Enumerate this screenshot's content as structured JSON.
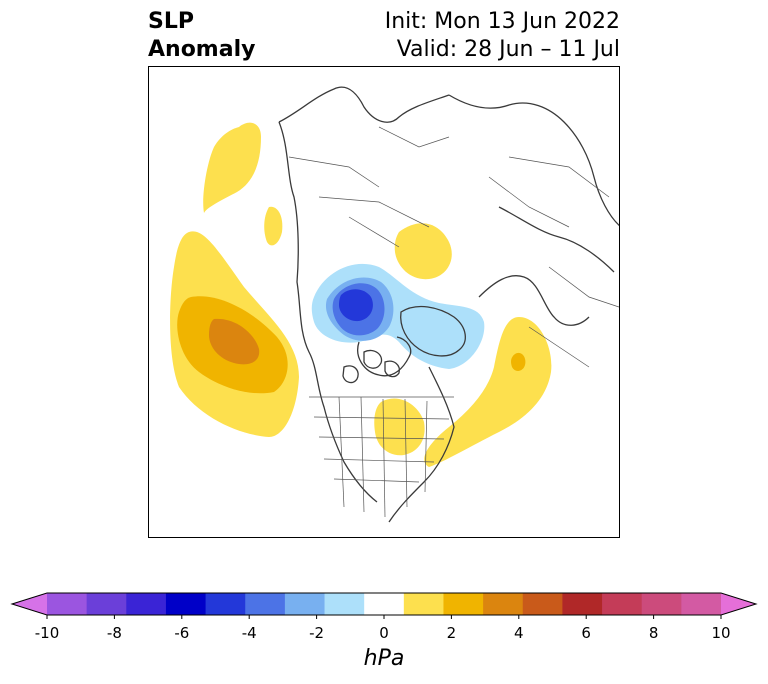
{
  "title": {
    "variable_line1": "SLP",
    "variable_line2": "Anomaly",
    "init": "Init: Mon 13 Jun 2022",
    "valid": "Valid: 28 Jun – 11 Jul"
  },
  "map": {
    "projection": "north-polar-stereographic",
    "region": "North America / Arctic / North Pacific / North Atlantic",
    "features": [
      {
        "name": "positive-anomaly-north-pacific",
        "value_range": "2 to 4",
        "peak_color": "#db850f"
      },
      {
        "name": "positive-anomaly-alaska-gulf",
        "value_range": "1 to 2"
      },
      {
        "name": "positive-anomaly-bering",
        "value_range": "1 to 2"
      },
      {
        "name": "negative-anomaly-arctic",
        "value_range": "-5 to -1",
        "peak_color": "#2536d6"
      },
      {
        "name": "positive-anomaly-siberia",
        "value_range": "1 to 2"
      },
      {
        "name": "positive-anomaly-north-atlantic",
        "value_range": "1 to 3"
      },
      {
        "name": "positive-anomaly-great-lakes",
        "value_range": "1 to 2"
      }
    ]
  },
  "colorbar": {
    "unit": "hPa",
    "min": -10,
    "max": 10,
    "extend": "both",
    "ticks": [
      "-10",
      "-8",
      "-6",
      "-4",
      "-2",
      "0",
      "2",
      "4",
      "6",
      "8",
      "10"
    ],
    "colors": [
      "#d672e8",
      "#9b55e0",
      "#6b3fd9",
      "#3a24d6",
      "#0000c8",
      "#2338d9",
      "#4c73e6",
      "#78b0f0",
      "#ade0fa",
      "#ffffff",
      "#fde04e",
      "#f0b400",
      "#db850f",
      "#c95a1a",
      "#b02828",
      "#c43c58",
      "#cc4b7c",
      "#d35aa3",
      "#e56fd8"
    ]
  }
}
